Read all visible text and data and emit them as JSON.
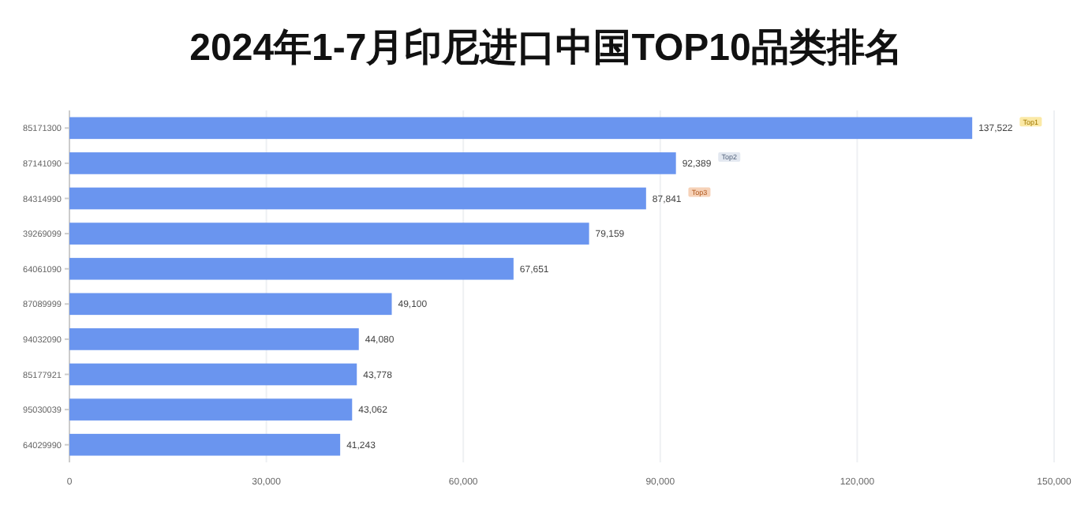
{
  "chart_data": {
    "type": "bar",
    "orientation": "horizontal",
    "title": "2024年1-7月印尼进口中国TOP10品类排名",
    "categories": [
      "85171300",
      "87141090",
      "84314990",
      "39269099",
      "64061090",
      "87089999",
      "94032090",
      "85177921",
      "95030039",
      "64029990"
    ],
    "values": [
      137522,
      92389,
      87841,
      79159,
      67651,
      49100,
      44080,
      43778,
      43062,
      41243
    ],
    "value_labels": [
      "137,522",
      "92,389",
      "87,841",
      "79,159",
      "67,651",
      "49,100",
      "44,080",
      "43,778",
      "43,062",
      "41,243"
    ],
    "color": "#6a95ef",
    "xlim": [
      0,
      150000
    ],
    "xticks": [
      {
        "value": 0,
        "label": "0"
      },
      {
        "value": 30000,
        "label": "30,000"
      },
      {
        "value": 60000,
        "label": "60,000"
      },
      {
        "value": 90000,
        "label": "90,000"
      },
      {
        "value": 120000,
        "label": "120,000"
      },
      {
        "value": 150000,
        "label": "150,000"
      }
    ],
    "grid": "x",
    "annotations": [
      "Top1",
      "Top2",
      "Top3"
    ]
  }
}
